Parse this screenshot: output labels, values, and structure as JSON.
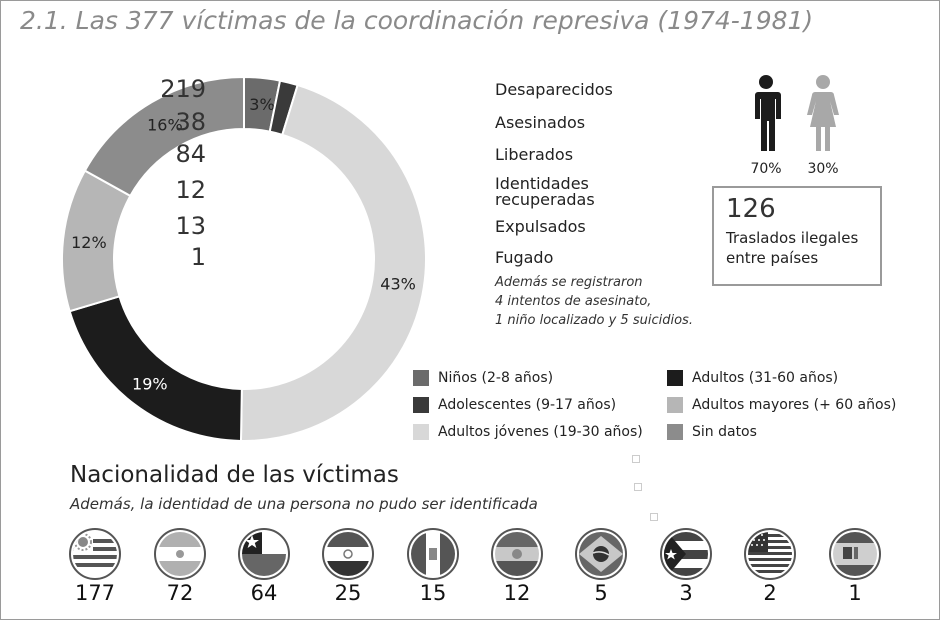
{
  "title": "2.1. Las 377 víctimas de la coordinación represiva (1974-1981)",
  "chart_data": {
    "type": "donut",
    "slices": [
      {
        "label": "Niños (2-8 años)",
        "value": 3,
        "display": "3%",
        "color": "#6b6b6b"
      },
      {
        "label": "Adolescentes (9-17 años)",
        "value": 1.5,
        "display": "",
        "color": "#3a3a3a"
      },
      {
        "label": "Adultos jóvenes (19-30 años)",
        "value": 43,
        "display": "43%",
        "color": "#d8d8d8"
      },
      {
        "label": "Adultos (31-60 años)",
        "value": 19,
        "display": "19%",
        "color": "#1c1c1c"
      },
      {
        "label": "Adultos mayores (+ 60 años)",
        "value": 12,
        "display": "12%",
        "color": "#b6b6b6"
      },
      {
        "label": "Sin datos",
        "value": 16,
        "display": "16%",
        "color": "#8c8c8c"
      }
    ]
  },
  "stats": [
    {
      "num": "219",
      "label": "Desaparecidos"
    },
    {
      "num": "38",
      "label": "Asesinados"
    },
    {
      "num": "84",
      "label": "Liberados"
    },
    {
      "num": "12",
      "label": "Identidades recuperadas"
    },
    {
      "num": "13",
      "label": "Expulsados"
    },
    {
      "num": "1",
      "label": "Fugado"
    }
  ],
  "note": [
    "Además se registraron",
    "4 intentos de asesinato,",
    "1 niño localizado y 5 suicidios."
  ],
  "gender": {
    "male_pct": "70%",
    "female_pct": "30%",
    "male_color": "#1c1c1c",
    "female_color": "#a8a8a8"
  },
  "transfers": {
    "number": "126",
    "label_line1": "Traslados ilegales",
    "label_line2": "entre países"
  },
  "legend": [
    {
      "label": "Niños (2-8 años)",
      "color": "#6b6b6b"
    },
    {
      "label": "Adolescentes (9-17 años)",
      "color": "#3a3a3a"
    },
    {
      "label": "Adultos jóvenes (19-30 años)",
      "color": "#d8d8d8"
    },
    {
      "label": "Adultos (31-60 años)",
      "color": "#1c1c1c"
    },
    {
      "label": "Adultos mayores (+ 60 años)",
      "color": "#b6b6b6"
    },
    {
      "label": "Sin datos",
      "color": "#8c8c8c"
    }
  ],
  "nationality": {
    "title": "Nacionalidad de las víctimas",
    "subtitle": "Además, la identidad de una persona no pudo ser identificada",
    "flags": [
      {
        "icon": "uruguay-flag-icon",
        "count": "177"
      },
      {
        "icon": "argentina-flag-icon",
        "count": "72"
      },
      {
        "icon": "chile-flag-icon",
        "count": "64"
      },
      {
        "icon": "paraguay-flag-icon",
        "count": "25"
      },
      {
        "icon": "peru-flag-icon",
        "count": "15"
      },
      {
        "icon": "bolivia-flag-icon",
        "count": "12"
      },
      {
        "icon": "brazil-flag-icon",
        "count": "5"
      },
      {
        "icon": "puerto-rico-flag-icon",
        "count": "3"
      },
      {
        "icon": "usa-flag-icon",
        "count": "2"
      },
      {
        "icon": "spain-flag-icon",
        "count": "1"
      }
    ]
  }
}
